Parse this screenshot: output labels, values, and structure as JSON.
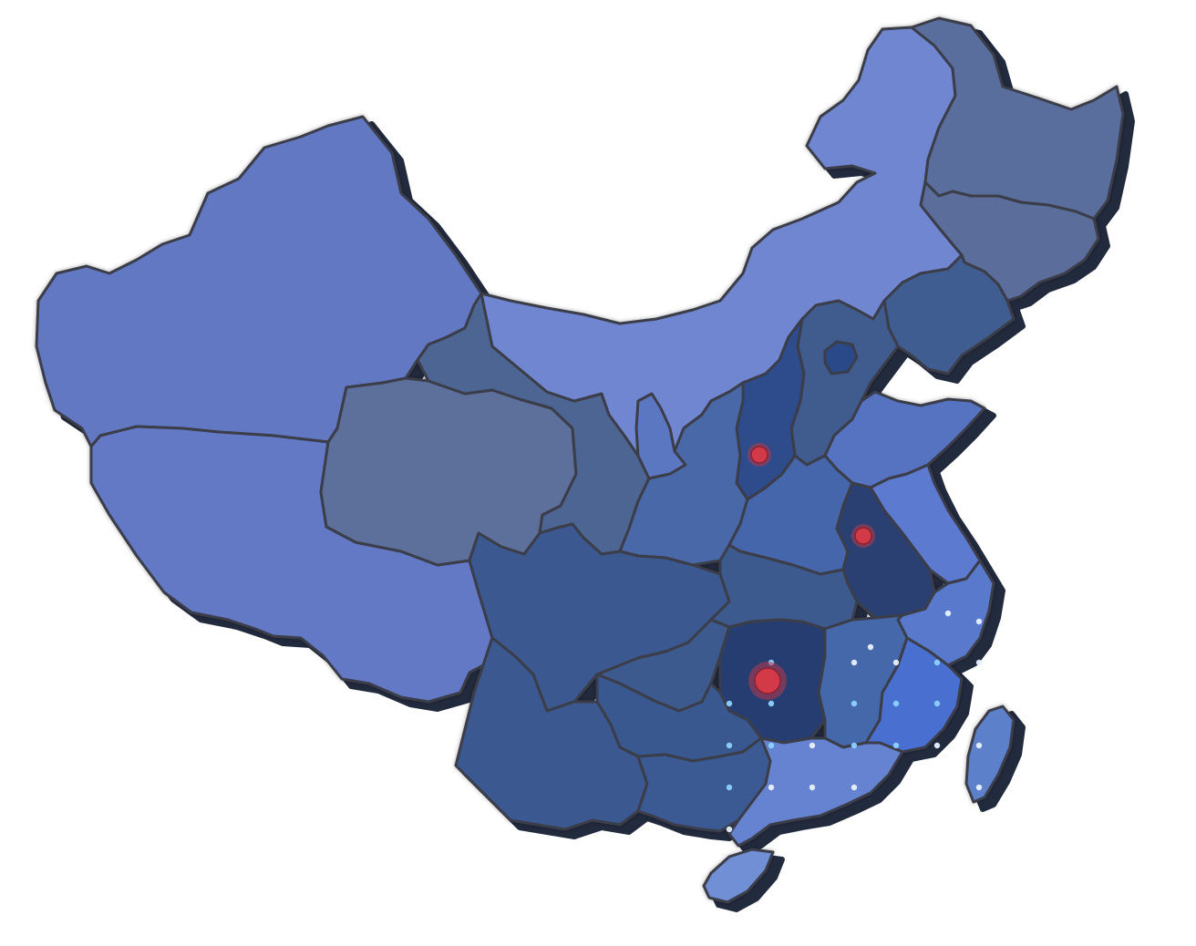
{
  "map": {
    "colors": {
      "background": "#ffffff",
      "border": "#3a3d4a",
      "shadow": "#222a3e",
      "marker": "#d23a48",
      "dot_light": "#e8f1ff",
      "dot_cyan": "#8cd2ff"
    },
    "regions": [
      {
        "id": "xinjiang",
        "fill": "#6378c3"
      },
      {
        "id": "tibet",
        "fill": "#6379c6"
      },
      {
        "id": "qinghai",
        "fill": "#5d6f9c"
      },
      {
        "id": "gansu",
        "fill": "#4d6592"
      },
      {
        "id": "inner-mongolia",
        "fill": "#6f86d0"
      },
      {
        "id": "heilongjiang",
        "fill": "#5a6e9e"
      },
      {
        "id": "jilin",
        "fill": "#5a6d9b"
      },
      {
        "id": "liaoning",
        "fill": "#3f5d91"
      },
      {
        "id": "hebei",
        "fill": "#3f5c8f"
      },
      {
        "id": "beijing",
        "fill": "#2a4a88"
      },
      {
        "id": "shanxi",
        "fill": "#2d4b8c"
      },
      {
        "id": "ningxia",
        "fill": "#5c77c2"
      },
      {
        "id": "shaanxi",
        "fill": "#4a68a8"
      },
      {
        "id": "shandong",
        "fill": "#5673c1"
      },
      {
        "id": "henan",
        "fill": "#4466ab"
      },
      {
        "id": "jiangsu",
        "fill": "#5b7ad0"
      },
      {
        "id": "anhui",
        "fill": "#2b3f73"
      },
      {
        "id": "sichuan",
        "fill": "#3b5890"
      },
      {
        "id": "hubei",
        "fill": "#3c5a8e"
      },
      {
        "id": "chongqing",
        "fill": "#3d5a8f"
      },
      {
        "id": "zhejiang",
        "fill": "#5979cc"
      },
      {
        "id": "hunan",
        "fill": "#263d72"
      },
      {
        "id": "jiangxi",
        "fill": "#4567aa"
      },
      {
        "id": "fujian",
        "fill": "#4a6fd0"
      },
      {
        "id": "guizhou",
        "fill": "#38588f"
      },
      {
        "id": "yunnan",
        "fill": "#3a5891"
      },
      {
        "id": "guangxi",
        "fill": "#3b5a93"
      },
      {
        "id": "guangdong",
        "fill": "#6683d2"
      },
      {
        "id": "hainan",
        "fill": "#6f8fd4"
      },
      {
        "id": "taiwan",
        "fill": "#5b80c9"
      }
    ],
    "markers": [
      {
        "id": "marker-shanxi",
        "region": "shanxi",
        "size": "small"
      },
      {
        "id": "marker-anhui",
        "region": "anhui",
        "size": "small"
      },
      {
        "id": "marker-hunan",
        "region": "hunan",
        "size": "large"
      }
    ]
  }
}
